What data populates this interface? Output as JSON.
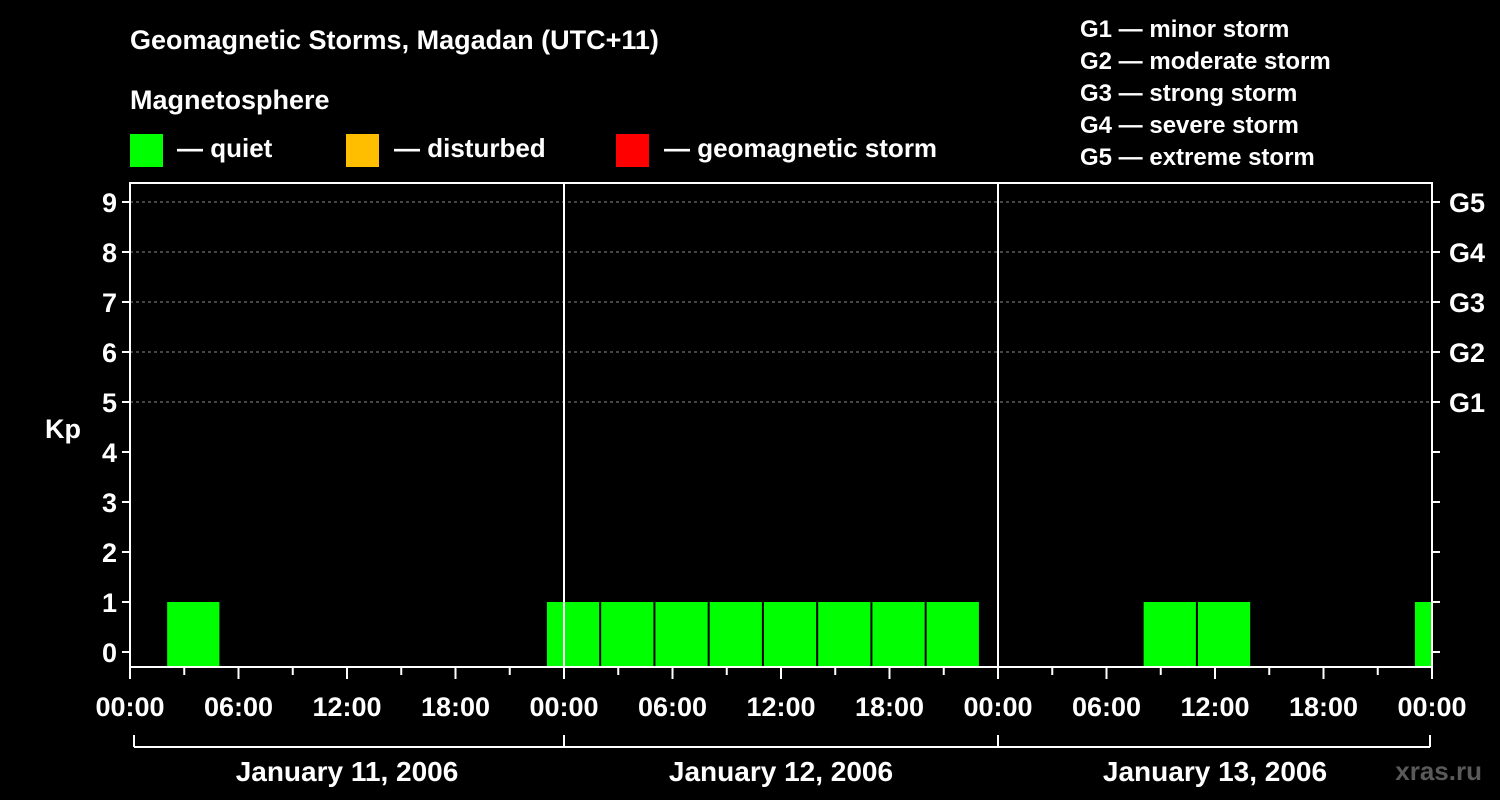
{
  "chart_data": {
    "type": "bar",
    "title": "Geomagnetic Storms, Magadan (UTC+11)",
    "legend_heading": "Magnetosphere",
    "legend": [
      {
        "label": "— quiet",
        "color": "#00ff00"
      },
      {
        "label": "— disturbed",
        "color": "#ffbf00"
      },
      {
        "label": "— geomagnetic storm",
        "color": "#ff0000"
      }
    ],
    "storm_scale": [
      "G1 — minor storm",
      "G2 — moderate storm",
      "G3 — strong storm",
      "G4 — severe storm",
      "G5 — extreme storm"
    ],
    "ylabel": "Kp",
    "ylim": [
      0,
      9
    ],
    "yticks": [
      "0",
      "1",
      "2",
      "3",
      "4",
      "5",
      "6",
      "7",
      "8",
      "9"
    ],
    "g_ticks": [
      {
        "label": "G1",
        "kp": 5
      },
      {
        "label": "G2",
        "kp": 6
      },
      {
        "label": "G3",
        "kp": 7
      },
      {
        "label": "G4",
        "kp": 8
      },
      {
        "label": "G5",
        "kp": 9
      }
    ],
    "xlim_hours": [
      0,
      72
    ],
    "xticks": [
      {
        "label": "00:00",
        "hour": 0
      },
      {
        "label": "06:00",
        "hour": 6
      },
      {
        "label": "12:00",
        "hour": 12
      },
      {
        "label": "18:00",
        "hour": 18
      },
      {
        "label": "00:00",
        "hour": 24
      },
      {
        "label": "06:00",
        "hour": 30
      },
      {
        "label": "12:00",
        "hour": 36
      },
      {
        "label": "18:00",
        "hour": 42
      },
      {
        "label": "00:00",
        "hour": 48
      },
      {
        "label": "06:00",
        "hour": 54
      },
      {
        "label": "12:00",
        "hour": 60
      },
      {
        "label": "18:00",
        "hour": 66
      },
      {
        "label": "00:00",
        "hour": 72
      }
    ],
    "days": [
      "January 11, 2006",
      "January 12, 2006",
      "January 13, 2006"
    ],
    "bars": [
      {
        "start_hour": 2,
        "end_hour": 5,
        "kp": 1,
        "level": "quiet"
      },
      {
        "start_hour": 23,
        "end_hour": 26,
        "kp": 1,
        "level": "quiet"
      },
      {
        "start_hour": 26,
        "end_hour": 29,
        "kp": 1,
        "level": "quiet"
      },
      {
        "start_hour": 29,
        "end_hour": 32,
        "kp": 1,
        "level": "quiet"
      },
      {
        "start_hour": 32,
        "end_hour": 35,
        "kp": 1,
        "level": "quiet"
      },
      {
        "start_hour": 35,
        "end_hour": 38,
        "kp": 1,
        "level": "quiet"
      },
      {
        "start_hour": 38,
        "end_hour": 41,
        "kp": 1,
        "level": "quiet"
      },
      {
        "start_hour": 41,
        "end_hour": 44,
        "kp": 1,
        "level": "quiet"
      },
      {
        "start_hour": 44,
        "end_hour": 47,
        "kp": 1,
        "level": "quiet"
      },
      {
        "start_hour": 56,
        "end_hour": 59,
        "kp": 1,
        "level": "quiet"
      },
      {
        "start_hour": 59,
        "end_hour": 62,
        "kp": 1,
        "level": "quiet"
      },
      {
        "start_hour": 71,
        "end_hour": 72,
        "kp": 1,
        "level": "quiet"
      }
    ],
    "watermark": "xras.ru"
  }
}
